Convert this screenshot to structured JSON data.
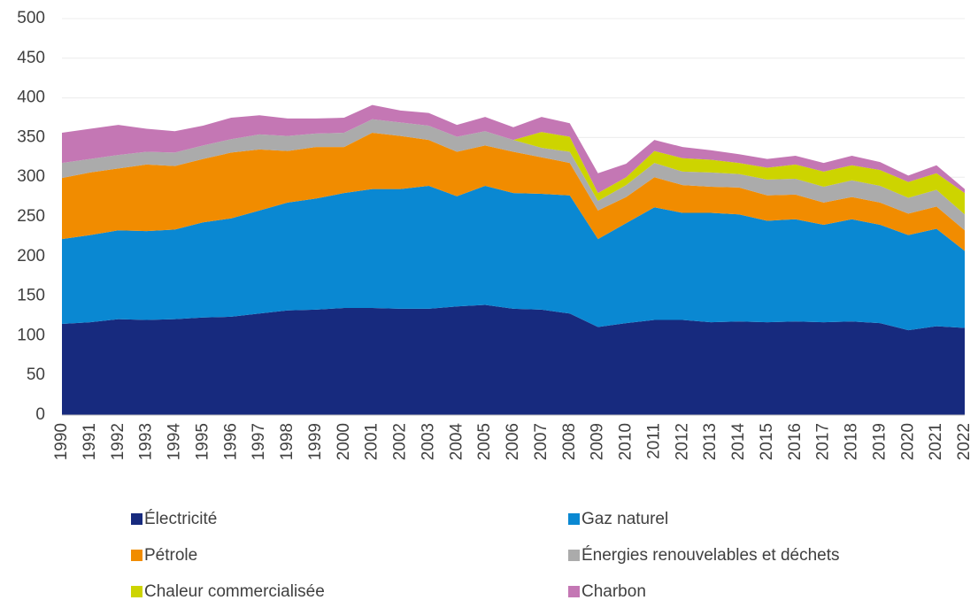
{
  "chart_data": {
    "type": "stacked_area",
    "categories": [
      "1990",
      "1991",
      "1992",
      "1993",
      "1994",
      "1995",
      "1996",
      "1997",
      "1998",
      "1999",
      "2000",
      "2001",
      "2002",
      "2003",
      "2004",
      "2005",
      "2006",
      "2007",
      "2008",
      "2009",
      "2010",
      "2011",
      "2012",
      "2013",
      "2014",
      "2015",
      "2016",
      "2017",
      "2018",
      "2019",
      "2020",
      "2021",
      "2022"
    ],
    "series": [
      {
        "name": "Électricité",
        "color": "#172a7e",
        "values": [
          115,
          117,
          121,
          120,
          121,
          123,
          124,
          128,
          132,
          133,
          135,
          135,
          134,
          134,
          137,
          139,
          134,
          133,
          128,
          111,
          116,
          120,
          120,
          117,
          118,
          117,
          118,
          117,
          118,
          116,
          107,
          112,
          110
        ]
      },
      {
        "name": "Gaz naturel",
        "color": "#0a88d2",
        "values": [
          107,
          110,
          112,
          112,
          113,
          120,
          124,
          130,
          136,
          140,
          145,
          150,
          151,
          155,
          139,
          150,
          146,
          146,
          149,
          111,
          126,
          142,
          135,
          138,
          135,
          128,
          129,
          123,
          129,
          124,
          120,
          123,
          97
        ]
      },
      {
        "name": "Pétrole",
        "color": "#f18c00",
        "values": [
          77,
          79,
          78,
          84,
          80,
          80,
          83,
          77,
          65,
          65,
          58,
          71,
          67,
          58,
          56,
          51,
          52,
          46,
          41,
          36,
          33,
          38,
          35,
          33,
          34,
          32,
          31,
          28,
          28,
          28,
          27,
          28,
          26
        ]
      },
      {
        "name": "Énergies renouvelables et déchets",
        "color": "#ababab",
        "values": [
          19,
          17,
          17,
          16,
          17,
          17,
          17,
          19,
          19,
          17,
          18,
          17,
          17,
          18,
          19,
          18,
          15,
          12,
          14,
          12,
          15,
          18,
          17,
          18,
          17,
          20,
          20,
          20,
          21,
          21,
          20,
          21,
          20
        ]
      },
      {
        "name": "Chaleur commercialisée",
        "color": "#cdd400",
        "values": [
          0,
          0,
          0,
          0,
          0,
          0,
          0,
          0,
          0,
          0,
          0,
          0,
          0,
          0,
          0,
          0,
          0,
          20,
          19,
          10,
          10,
          15,
          17,
          16,
          14,
          15,
          18,
          19,
          19,
          20,
          20,
          21,
          27
        ]
      },
      {
        "name": "Charbon",
        "color": "#c477b4",
        "values": [
          38,
          38,
          38,
          29,
          27,
          25,
          27,
          24,
          22,
          19,
          19,
          18,
          15,
          16,
          15,
          18,
          16,
          19,
          17,
          25,
          17,
          14,
          14,
          12,
          11,
          11,
          11,
          11,
          12,
          10,
          8,
          10,
          5
        ]
      }
    ],
    "ylim": [
      0,
      500
    ],
    "yticks": [
      0,
      50,
      100,
      150,
      200,
      250,
      300,
      350,
      400,
      450,
      500
    ],
    "grid": true
  }
}
